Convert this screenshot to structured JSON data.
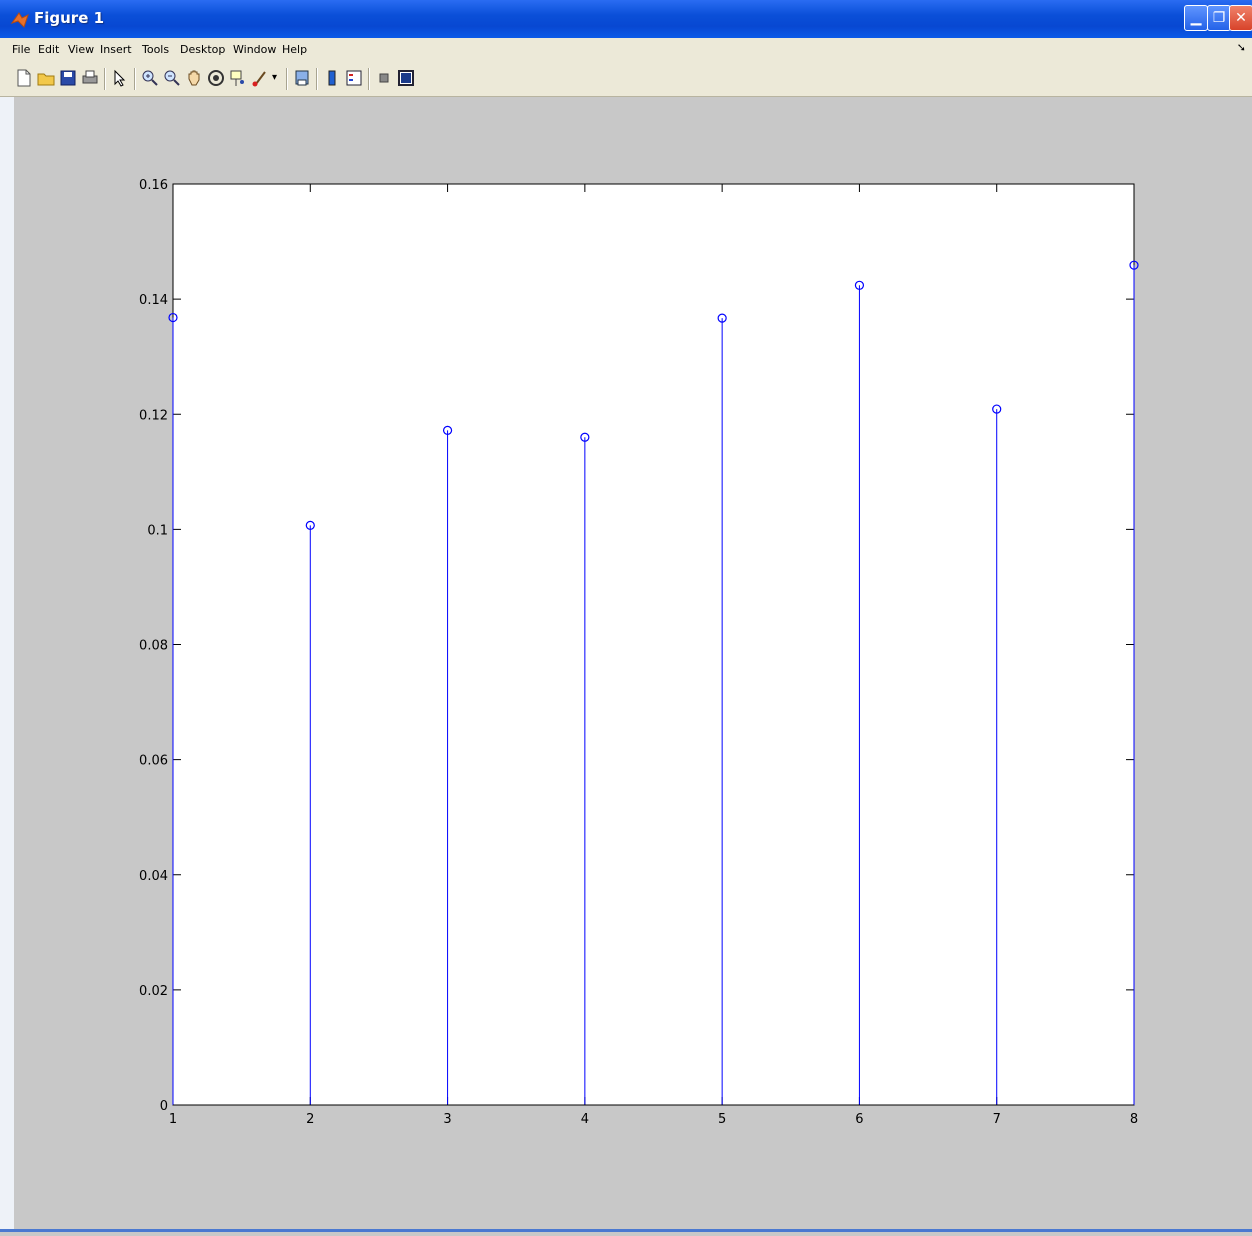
{
  "window": {
    "title": "Figure 1",
    "minimize_icon": "minimize-icon",
    "restore_icon": "restore-icon",
    "close_icon": "close-icon"
  },
  "menu": {
    "items": [
      "File",
      "Edit",
      "View",
      "Insert",
      "Tools",
      "Desktop",
      "Window",
      "Help"
    ]
  },
  "toolbar": {
    "icons": [
      "new-figure-icon",
      "open-file-icon",
      "save-icon",
      "print-icon",
      "edit-plot-arrow-icon",
      "zoom-in-icon",
      "zoom-out-icon",
      "pan-hand-icon",
      "rotate-3d-icon",
      "data-cursor-icon",
      "brush-icon",
      "link-plot-icon",
      "colorbar-icon",
      "legend-icon",
      "hide-plot-tools-icon",
      "show-plot-tools-icon"
    ]
  },
  "colors": {
    "stem": "#0000ff",
    "axes_bg": "#ffffff",
    "figure_bg": "#c8c8c8"
  },
  "chart_data": {
    "type": "stem",
    "x": [
      1,
      2,
      3,
      4,
      5,
      6,
      7,
      8
    ],
    "values": [
      0.1368,
      0.1007,
      0.1172,
      0.116,
      0.1367,
      0.1424,
      0.1209,
      0.1459
    ],
    "xlim": [
      1,
      8
    ],
    "ylim": [
      0,
      0.16
    ],
    "xticks": [
      "1",
      "2",
      "3",
      "4",
      "5",
      "6",
      "7",
      "8"
    ],
    "yticks": [
      "0",
      "0.02",
      "0.04",
      "0.06",
      "0.08",
      "0.1",
      "0.12",
      "0.14",
      "0.16"
    ],
    "grid": false,
    "marker": "circle"
  }
}
